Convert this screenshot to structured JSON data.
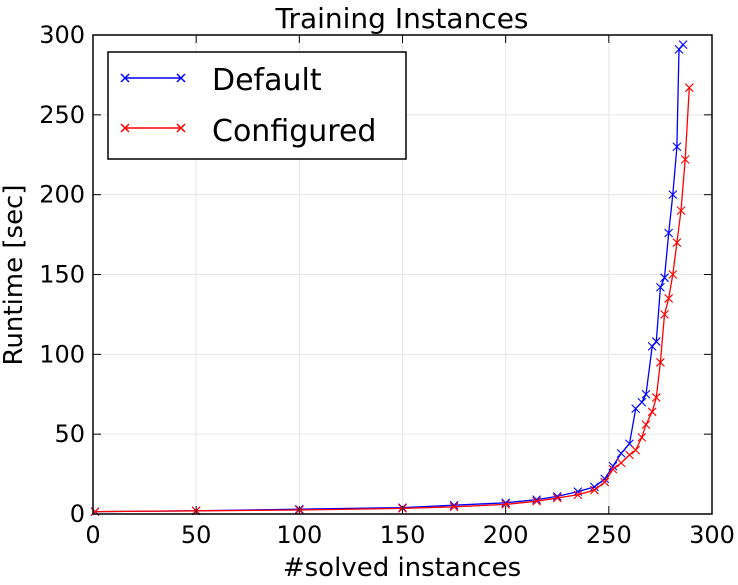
{
  "chart_data": {
    "type": "line",
    "title": "Training Instances",
    "xlabel": "#solved instances",
    "ylabel": "Runtime [sec]",
    "xlim": [
      0,
      300
    ],
    "ylim": [
      0,
      300
    ],
    "xticks": [
      0,
      50,
      100,
      150,
      200,
      250,
      300
    ],
    "yticks": [
      0,
      50,
      100,
      150,
      200,
      250,
      300
    ],
    "grid": true,
    "legend_position": "top-left",
    "marker": "x",
    "series": [
      {
        "name": "Default",
        "color": "#0000ff",
        "points": [
          [
            1,
            1.5
          ],
          [
            50,
            2
          ],
          [
            100,
            3
          ],
          [
            150,
            4
          ],
          [
            175,
            5.5
          ],
          [
            200,
            7
          ],
          [
            215,
            9
          ],
          [
            225,
            11
          ],
          [
            235,
            14
          ],
          [
            243,
            17
          ],
          [
            248,
            22
          ],
          [
            252,
            30
          ],
          [
            256,
            38
          ],
          [
            260,
            44
          ],
          [
            263,
            66
          ],
          [
            266,
            70
          ],
          [
            268,
            75
          ],
          [
            271,
            105
          ],
          [
            273,
            108
          ],
          [
            275,
            142
          ],
          [
            277,
            148
          ],
          [
            279,
            176
          ],
          [
            281,
            200
          ],
          [
            283,
            230
          ],
          [
            284,
            291
          ],
          [
            286,
            294
          ]
        ]
      },
      {
        "name": "Configured",
        "color": "#ff0000",
        "points": [
          [
            1,
            1.5
          ],
          [
            50,
            2
          ],
          [
            100,
            2.5
          ],
          [
            150,
            3.5
          ],
          [
            175,
            4.5
          ],
          [
            200,
            6
          ],
          [
            215,
            8
          ],
          [
            225,
            10
          ],
          [
            235,
            12
          ],
          [
            243,
            15
          ],
          [
            248,
            20
          ],
          [
            252,
            28
          ],
          [
            256,
            32
          ],
          [
            260,
            37
          ],
          [
            263,
            40
          ],
          [
            266,
            48
          ],
          [
            268,
            56
          ],
          [
            271,
            64
          ],
          [
            273,
            73
          ],
          [
            275,
            95
          ],
          [
            277,
            125
          ],
          [
            279,
            135
          ],
          [
            281,
            150
          ],
          [
            283,
            170
          ],
          [
            285,
            190
          ],
          [
            287,
            222
          ],
          [
            289,
            267
          ]
        ]
      }
    ]
  }
}
